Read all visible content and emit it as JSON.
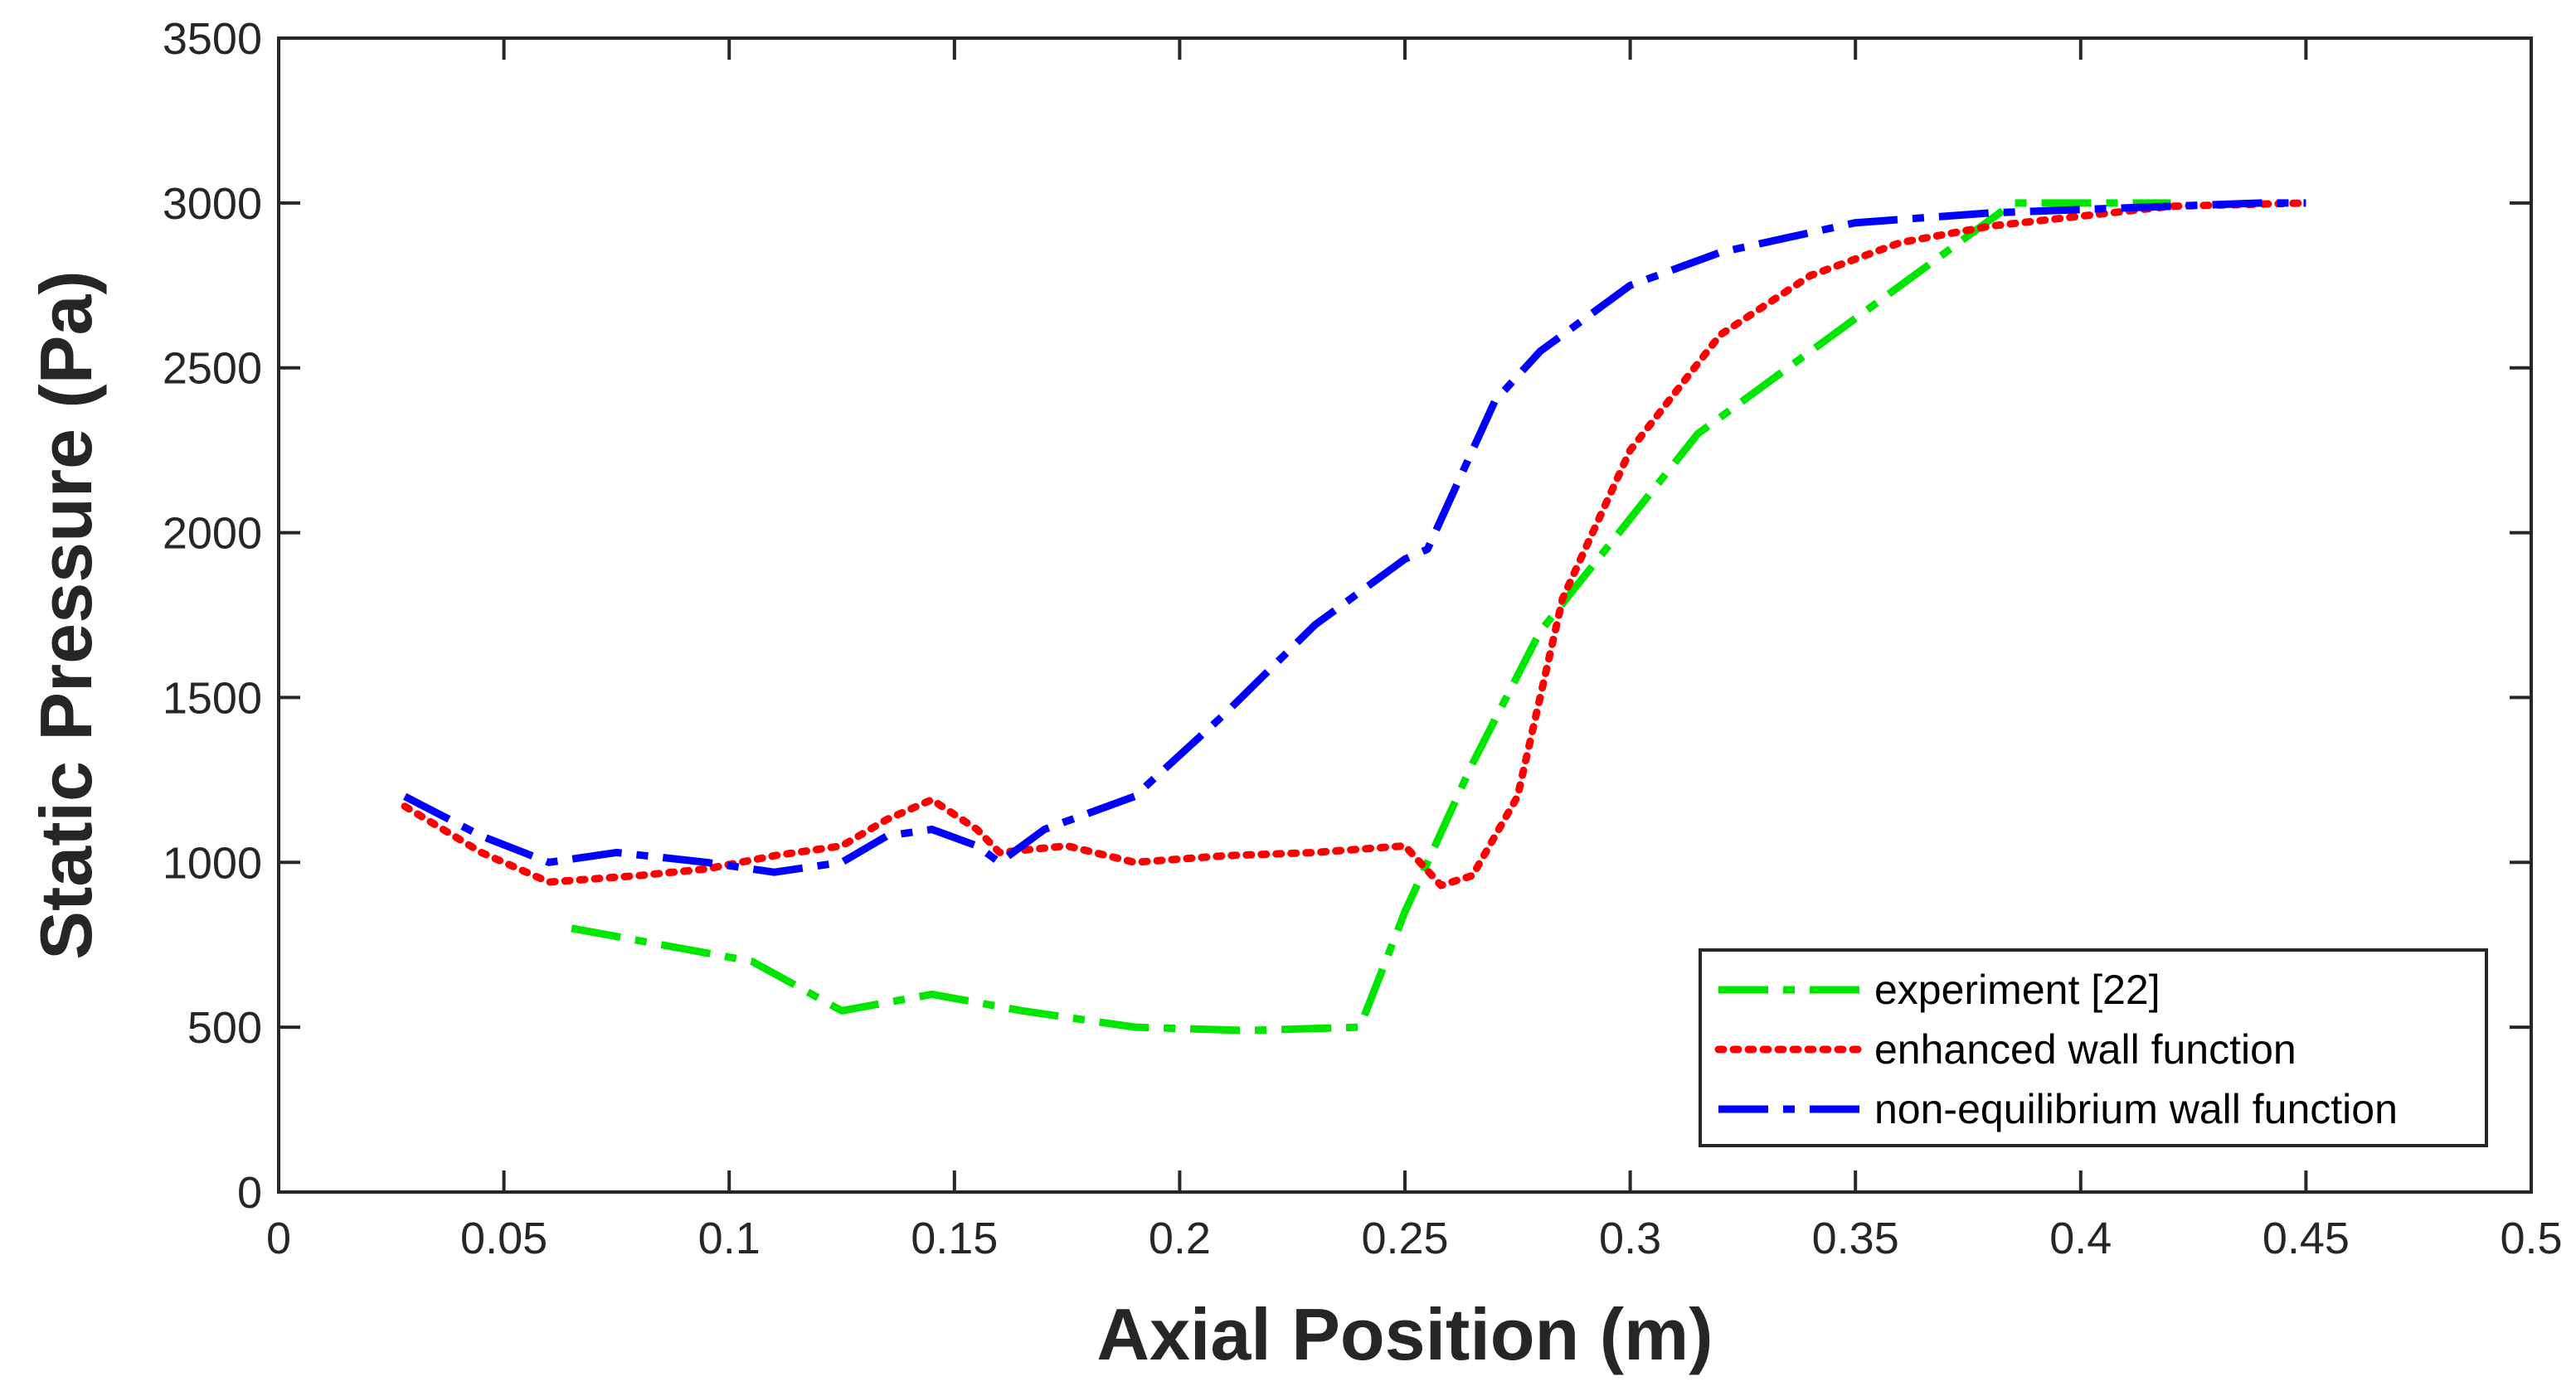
{
  "chart_data": {
    "type": "line",
    "title": "",
    "xlabel": "Axial Position (m)",
    "ylabel": "Static Pressure (Pa)",
    "xlim": [
      0,
      0.5
    ],
    "ylim": [
      0,
      3500
    ],
    "xticks": [
      0,
      0.05,
      0.1,
      0.15,
      0.2,
      0.25,
      0.3,
      0.35,
      0.4,
      0.45,
      0.5
    ],
    "xtick_labels": [
      "0",
      "0.05",
      "0.1",
      "0.15",
      "0.2",
      "0.25",
      "0.3",
      "0.35",
      "0.4",
      "0.45",
      "0.5"
    ],
    "yticks": [
      0,
      500,
      1000,
      1500,
      2000,
      2500,
      3000,
      3500
    ],
    "ytick_labels": [
      "0",
      "500",
      "1000",
      "1500",
      "2000",
      "2500",
      "3000",
      "3500"
    ],
    "grid": false,
    "legend_position": "bottom-right",
    "series": [
      {
        "name": "experiment [22]",
        "color": "#00e600",
        "style": "dash-dot",
        "x": [
          0.065,
          0.105,
          0.125,
          0.145,
          0.165,
          0.19,
          0.215,
          0.24,
          0.25,
          0.265,
          0.28,
          0.315,
          0.35,
          0.385,
          0.42
        ],
        "y": [
          800,
          700,
          550,
          600,
          550,
          500,
          490,
          500,
          850,
          1300,
          1700,
          2300,
          2650,
          3000,
          3000
        ]
      },
      {
        "name": "enhanced wall function",
        "color": "#ff0000",
        "style": "dotted",
        "x": [
          0.028,
          0.045,
          0.06,
          0.08,
          0.095,
          0.11,
          0.125,
          0.135,
          0.145,
          0.155,
          0.16,
          0.175,
          0.19,
          0.21,
          0.23,
          0.25,
          0.258,
          0.265,
          0.275,
          0.285,
          0.3,
          0.32,
          0.34,
          0.36,
          0.38,
          0.4,
          0.42,
          0.45
        ],
        "y": [
          1170,
          1030,
          940,
          960,
          980,
          1020,
          1050,
          1130,
          1190,
          1100,
          1030,
          1050,
          1000,
          1020,
          1030,
          1050,
          930,
          960,
          1200,
          1800,
          2250,
          2600,
          2780,
          2880,
          2930,
          2960,
          2990,
          3000
        ]
      },
      {
        "name": "non-equilibrium wall function",
        "color": "#0000ff",
        "style": "dash-dot",
        "x": [
          0.028,
          0.045,
          0.06,
          0.075,
          0.095,
          0.11,
          0.125,
          0.135,
          0.145,
          0.155,
          0.16,
          0.17,
          0.19,
          0.21,
          0.23,
          0.25,
          0.255,
          0.27,
          0.28,
          0.3,
          0.32,
          0.35,
          0.38,
          0.41,
          0.44,
          0.45
        ],
        "y": [
          1200,
          1080,
          1000,
          1030,
          1000,
          970,
          1000,
          1080,
          1100,
          1050,
          1000,
          1100,
          1200,
          1450,
          1720,
          1920,
          1950,
          2400,
          2550,
          2750,
          2850,
          2940,
          2970,
          2985,
          3000,
          3000
        ]
      }
    ]
  }
}
